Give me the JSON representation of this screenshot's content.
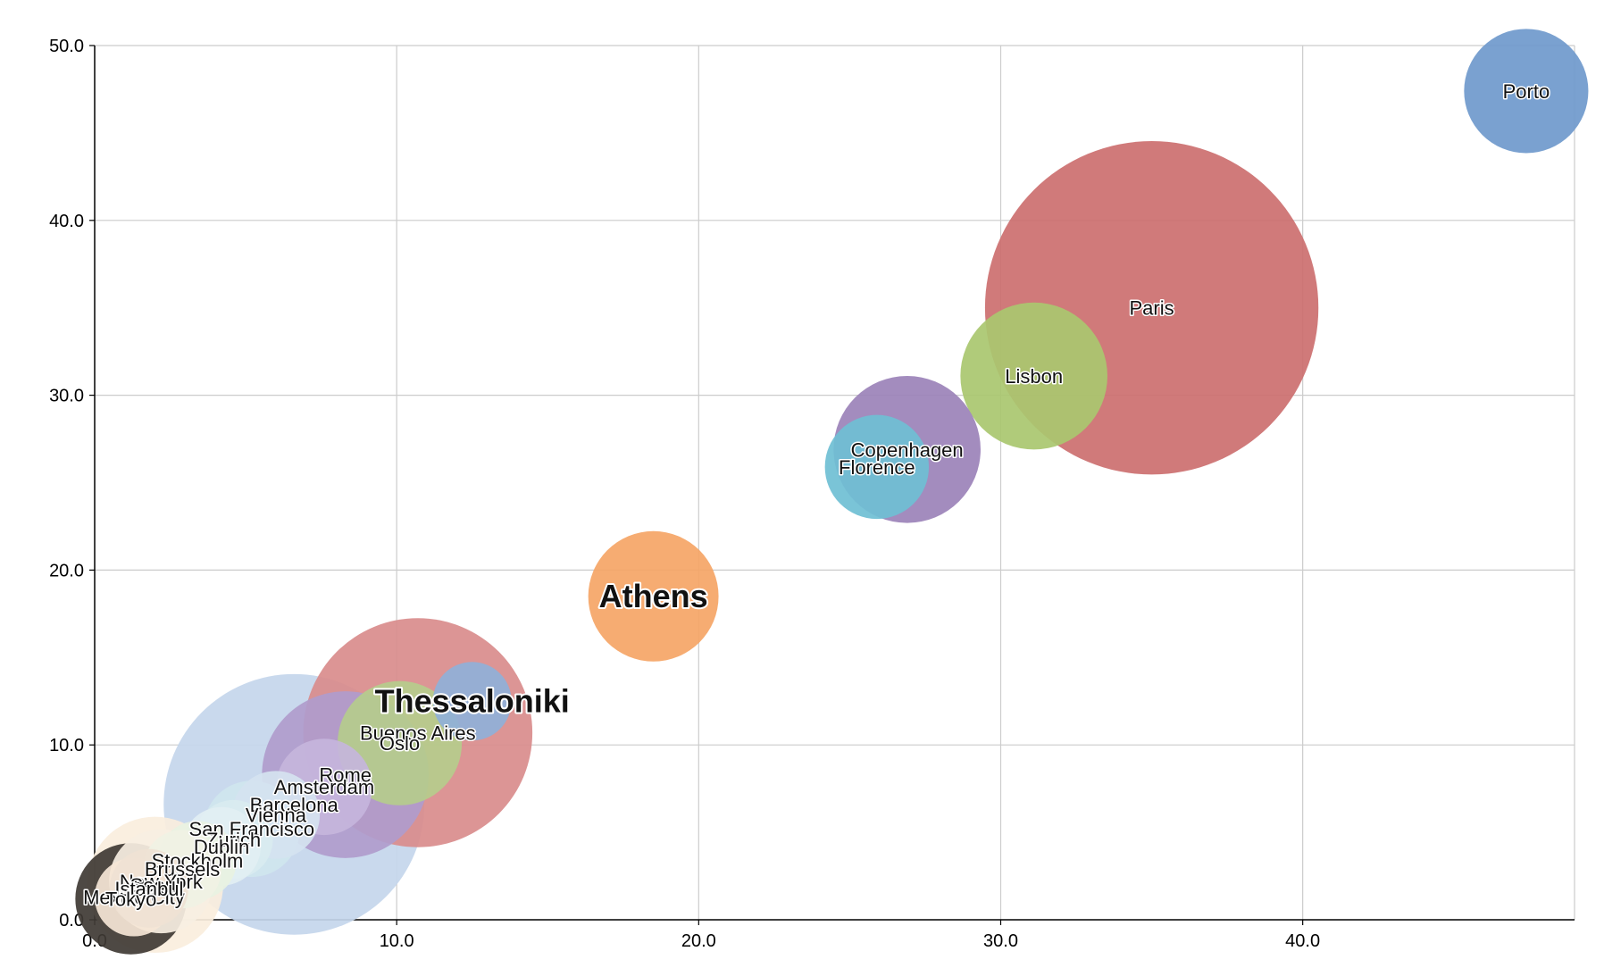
{
  "chart_data": {
    "type": "scatter",
    "title": "",
    "xlabel": "",
    "ylabel": "",
    "xlim": [
      0,
      49
    ],
    "ylim": [
      0,
      50
    ],
    "x_ticks": [
      "0.0",
      "10.0",
      "20.0",
      "30.0",
      "40.0"
    ],
    "y_ticks": [
      "0.0",
      "10.0",
      "20.0",
      "30.0",
      "40.0",
      "50.0"
    ],
    "x_tick_values": [
      0,
      10,
      20,
      30,
      40
    ],
    "y_tick_values": [
      0,
      10,
      20,
      30,
      40,
      50
    ],
    "grid": true,
    "points": [
      {
        "label": "Porto",
        "x": 47.4,
        "y": 47.4,
        "size": 5.0,
        "color": "#6f99cc",
        "emphasis": false
      },
      {
        "label": "Paris",
        "x": 35.0,
        "y": 35.0,
        "size": 36.0,
        "color": "#cc6f6f",
        "emphasis": false
      },
      {
        "label": "Lisbon",
        "x": 31.1,
        "y": 31.1,
        "size": 7.0,
        "color": "#a9c76f",
        "emphasis": false
      },
      {
        "label": "Copenhagen",
        "x": 26.9,
        "y": 26.9,
        "size": 7.0,
        "color": "#9b82b8",
        "emphasis": false
      },
      {
        "label": "Florence",
        "x": 25.9,
        "y": 25.9,
        "size": 3.5,
        "color": "#6fbfd4",
        "emphasis": false
      },
      {
        "label": "Athens",
        "x": 18.5,
        "y": 18.5,
        "size": 5.5,
        "color": "#f5a566",
        "emphasis": true
      },
      {
        "label": "Thessaloniki",
        "x": 12.5,
        "y": 12.5,
        "size": 2.0,
        "color": "#8fb0d8",
        "emphasis": true
      },
      {
        "label": "Buenos Aires",
        "x": 10.7,
        "y": 10.7,
        "size": 17.0,
        "color": "#d98c8c",
        "emphasis": false
      },
      {
        "label": "Oslo",
        "x": 10.1,
        "y": 10.1,
        "size": 5.0,
        "color": "#b5cc8c",
        "emphasis": false
      },
      {
        "label": "Rome",
        "x": 8.3,
        "y": 8.3,
        "size": 9.0,
        "color": "#b09ccc",
        "emphasis": false
      },
      {
        "label": "Amsterdam",
        "x": 7.6,
        "y": 7.6,
        "size": 3.0,
        "color": "#c5b5dc",
        "emphasis": false
      },
      {
        "label": "Barcelona",
        "x": 6.6,
        "y": 6.6,
        "size": 22.0,
        "color": "#c4d6ec",
        "emphasis": false
      },
      {
        "label": "Vienna",
        "x": 6.0,
        "y": 6.0,
        "size": 2.5,
        "color": "#d5e3f0",
        "emphasis": false
      },
      {
        "label": "San Francisco",
        "x": 5.2,
        "y": 5.2,
        "size": 3.0,
        "color": "#cfe6ee",
        "emphasis": false
      },
      {
        "label": "Zurich",
        "x": 4.6,
        "y": 4.6,
        "size": 2.0,
        "color": "#d9ecf0",
        "emphasis": false
      },
      {
        "label": "Dublin",
        "x": 4.2,
        "y": 4.2,
        "size": 2.0,
        "color": "#e2eff3",
        "emphasis": false
      },
      {
        "label": "Stockholm",
        "x": 3.4,
        "y": 3.4,
        "size": 2.0,
        "color": "#e8f2e2",
        "emphasis": false
      },
      {
        "label": "Brussels",
        "x": 2.9,
        "y": 2.9,
        "size": 2.0,
        "color": "#f0f2e4",
        "emphasis": false
      },
      {
        "label": "New York",
        "x": 2.2,
        "y": 2.2,
        "size": 3.5,
        "color": "#f7efe2",
        "emphasis": false
      },
      {
        "label": "Seoul",
        "x": 2.0,
        "y": 2.0,
        "size": 6.0,
        "color": "#faeedd",
        "emphasis": false
      },
      {
        "label": "Mexico City",
        "x": 1.3,
        "y": 1.3,
        "size": 2.0,
        "color": "#f5e6d6",
        "emphasis": false
      },
      {
        "label": "Istanbul",
        "x": 1.8,
        "y": 1.8,
        "size": 2.0,
        "color": "#efe2d4",
        "emphasis": false
      },
      {
        "label": "Tokyo",
        "x": 1.2,
        "y": 1.2,
        "size": 4.0,
        "color": "#3f3a34",
        "emphasis": false
      }
    ]
  }
}
